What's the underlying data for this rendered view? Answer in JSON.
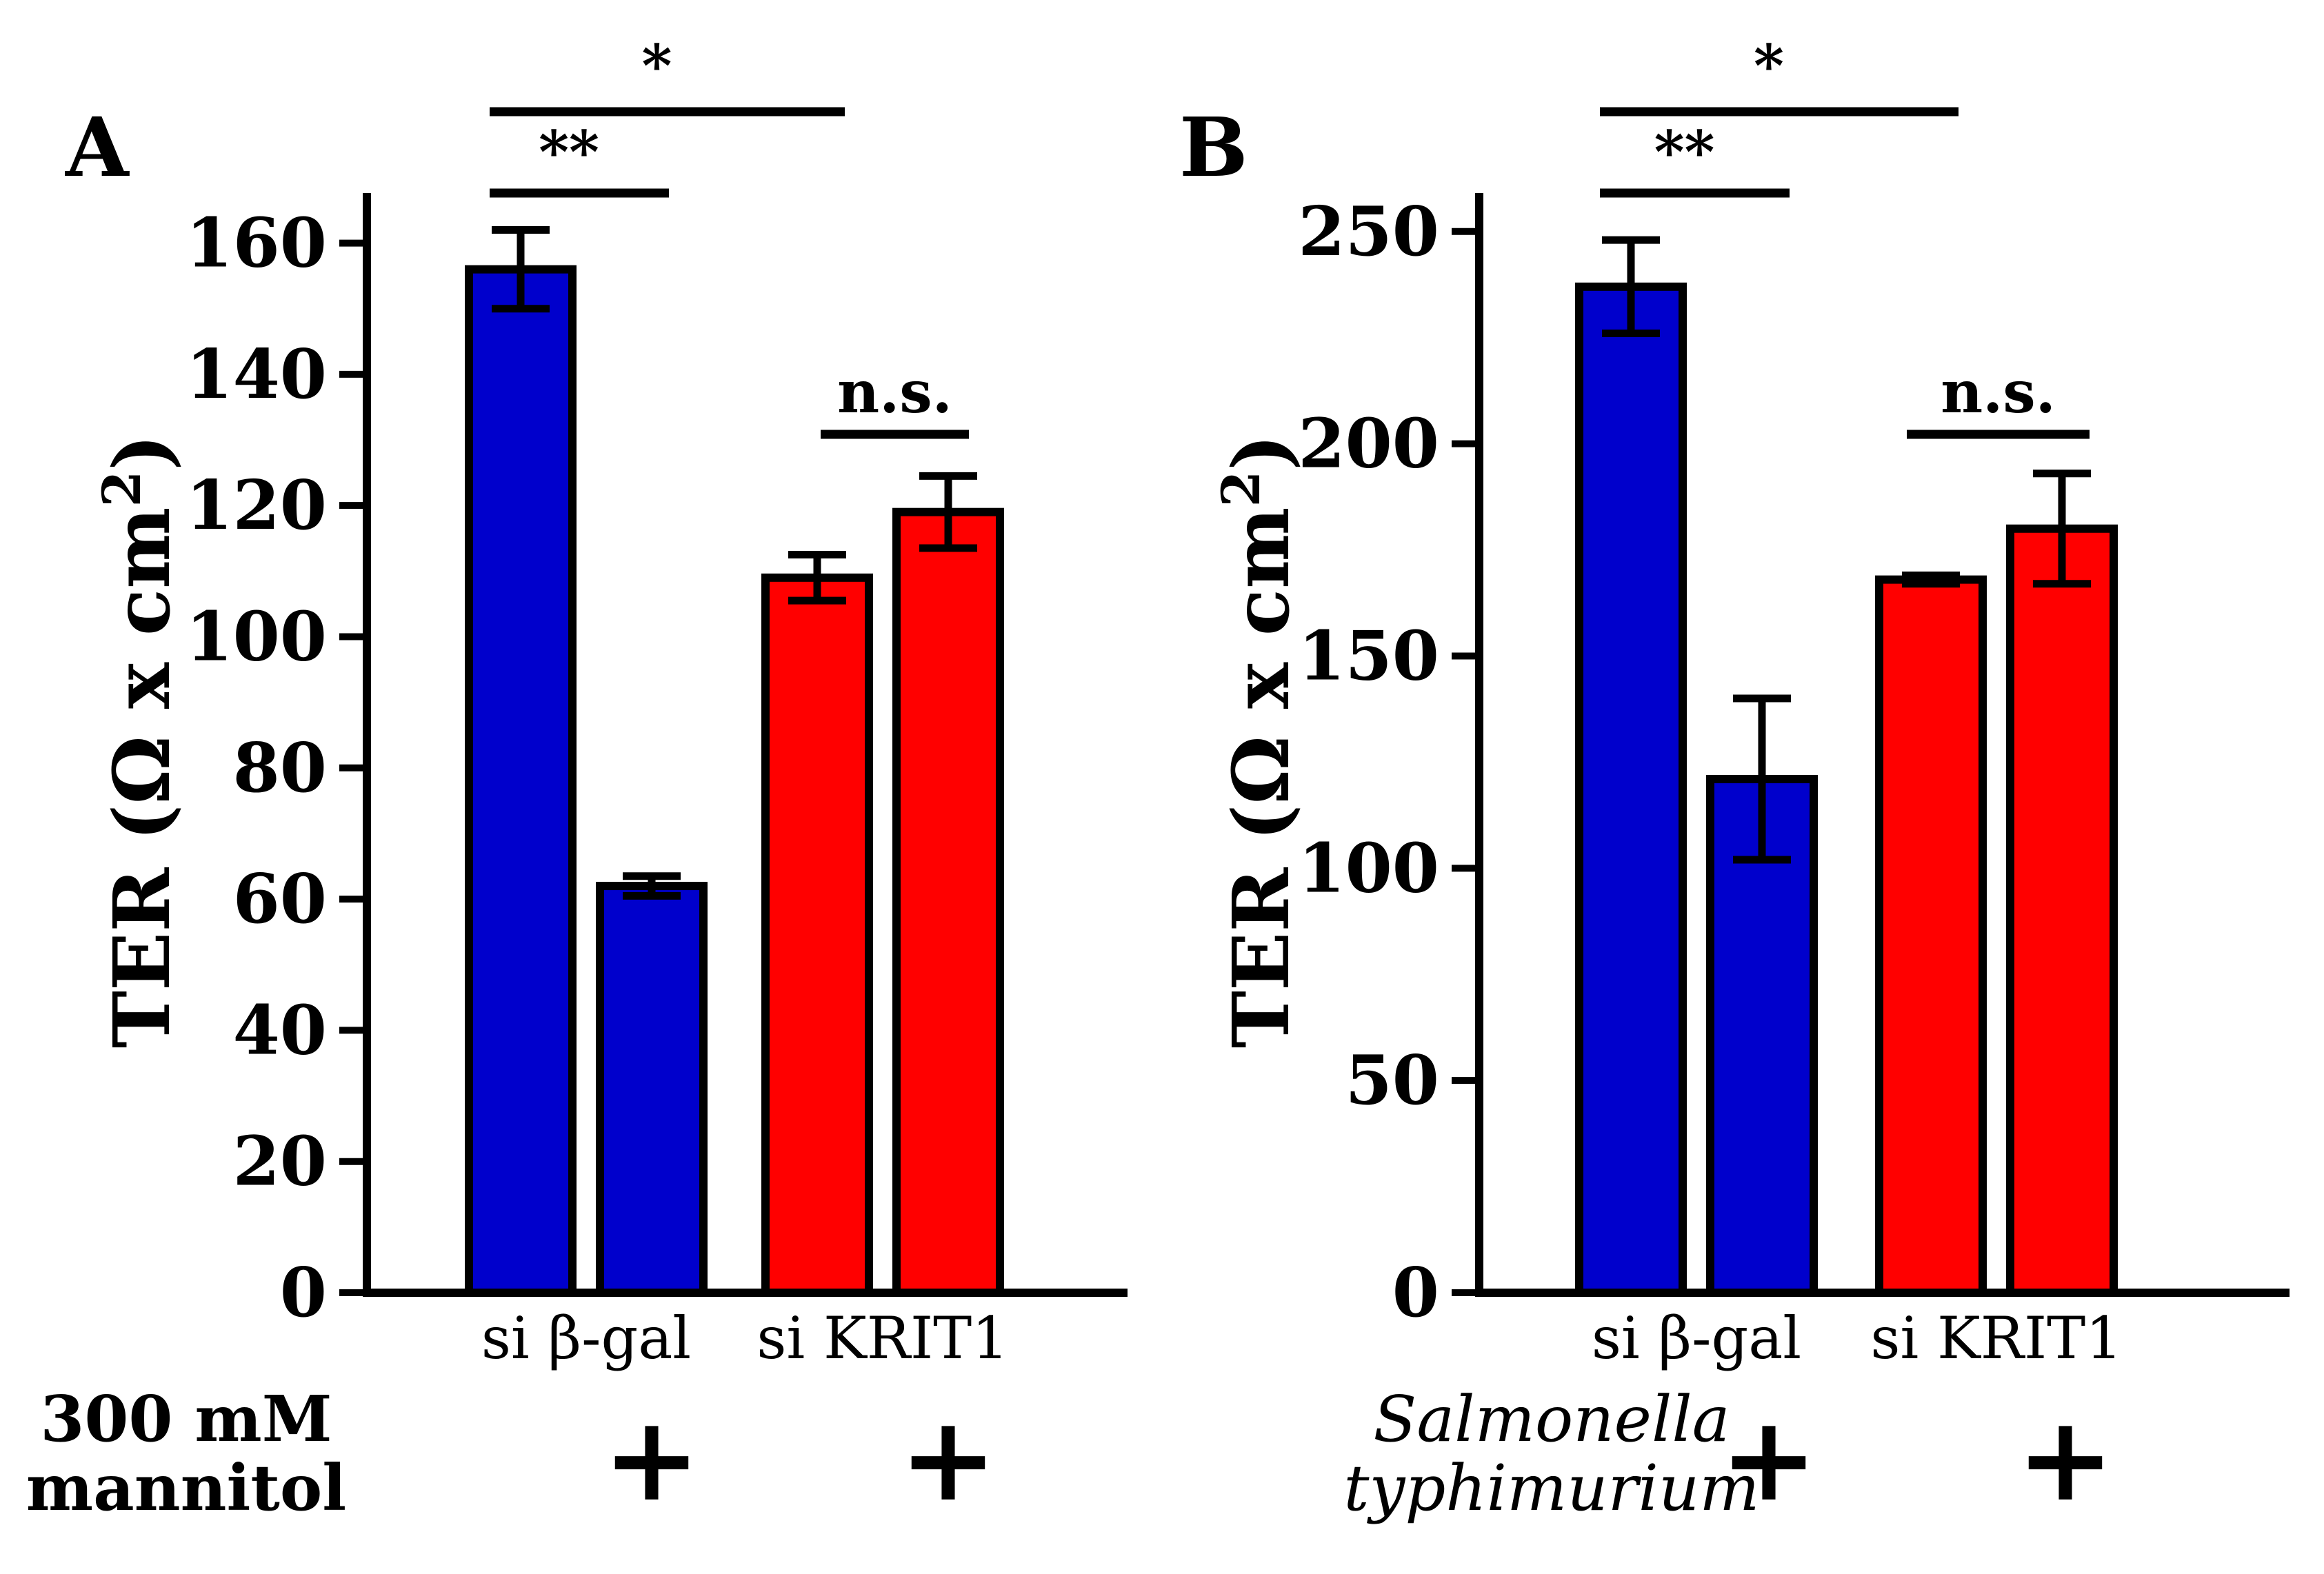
{
  "chart_data": [
    {
      "panel": "A",
      "type": "bar",
      "ylabel_main": "TER (Ω x cm",
      "ylabel_sup": "2",
      "ylabel_close": ")",
      "ylim": [
        0,
        165
      ],
      "yticks": [
        "0",
        "20",
        "40",
        "60",
        "80",
        "100",
        "120",
        "140",
        "160"
      ],
      "ytick_values": [
        0,
        20,
        40,
        60,
        80,
        100,
        120,
        140,
        160
      ],
      "groups": [
        "si β-gal",
        "si KRIT1"
      ],
      "bars": [
        {
          "group": "si β-gal",
          "treated": false,
          "value": 156,
          "error": 6,
          "color": "#0000cc"
        },
        {
          "group": "si β-gal",
          "treated": true,
          "value": 62,
          "error": 1.5,
          "color": "#0000cc"
        },
        {
          "group": "si KRIT1",
          "treated": false,
          "value": 109,
          "error": 3.5,
          "color": "#ff0000"
        },
        {
          "group": "si KRIT1",
          "treated": true,
          "value": 119,
          "error": 5.5,
          "color": "#ff0000"
        }
      ],
      "significance": [
        {
          "from_bar": 0,
          "to_bar": 2,
          "label": "*"
        },
        {
          "from_bar": 0,
          "to_bar": 1,
          "label": "**"
        },
        {
          "from_bar": 2,
          "to_bar": 3,
          "label": "n.s."
        }
      ],
      "treatment_lines": [
        "300 mM",
        "mannitol"
      ],
      "treatment_italic": false,
      "treatment_marker": "+"
    },
    {
      "panel": "B",
      "type": "bar",
      "ylabel_main": "TER (Ω x cm",
      "ylabel_sup": "2",
      "ylabel_close": ")",
      "ylim": [
        0,
        255
      ],
      "yticks": [
        "0",
        "50",
        "100",
        "150",
        "200",
        "250"
      ],
      "ytick_values": [
        0,
        50,
        100,
        150,
        200,
        250
      ],
      "groups": [
        "si β-gal",
        "si KRIT1"
      ],
      "bars": [
        {
          "group": "si β-gal",
          "treated": false,
          "value": 237,
          "error": 11,
          "color": "#0000cc"
        },
        {
          "group": "si β-gal",
          "treated": true,
          "value": 121,
          "error": 19,
          "color": "#0000cc"
        },
        {
          "group": "si KRIT1",
          "treated": false,
          "value": 168,
          "error": 1,
          "color": "#ff0000"
        },
        {
          "group": "si KRIT1",
          "treated": true,
          "value": 180,
          "error": 13,
          "color": "#ff0000"
        }
      ],
      "significance": [
        {
          "from_bar": 0,
          "to_bar": 2,
          "label": "*"
        },
        {
          "from_bar": 0,
          "to_bar": 1,
          "label": "**"
        },
        {
          "from_bar": 2,
          "to_bar": 3,
          "label": "n.s."
        }
      ],
      "treatment_lines": [
        "Salmonella",
        "typhimurium"
      ],
      "treatment_italic": true,
      "treatment_marker": "+"
    }
  ]
}
